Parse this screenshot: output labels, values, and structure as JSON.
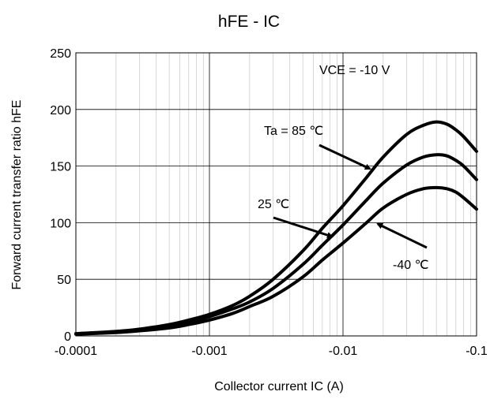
{
  "chart_data": {
    "type": "line",
    "title": "hFE - IC",
    "xlabel": "Collector current IC (A)",
    "ylabel": "Forward current transfer ratio hFE",
    "x_scale": "log",
    "xlim": [
      -0.0001,
      -0.1
    ],
    "ylim": [
      0,
      250
    ],
    "grid": true,
    "x_ticks": [
      "-0.0001",
      "-0.001",
      "-0.01",
      "-0.1"
    ],
    "y_ticks": [
      "0",
      "50",
      "100",
      "150",
      "200",
      "250"
    ],
    "condition_label": "VCE = -10 V",
    "series": [
      {
        "name": "Ta = 85 ℃",
        "color": "#000000",
        "x": [
          -0.0001,
          -0.0002,
          -0.0003,
          -0.0005,
          -0.0007,
          -0.001,
          -0.0015,
          -0.002,
          -0.003,
          -0.005,
          -0.007,
          -0.01,
          -0.015,
          -0.02,
          -0.03,
          -0.04,
          -0.05,
          -0.06,
          -0.07,
          -0.08,
          -0.1
        ],
        "y": [
          2,
          4,
          6,
          10,
          14,
          19,
          27,
          35,
          50,
          75,
          95,
          115,
          140,
          158,
          178,
          186,
          189,
          187,
          182,
          176,
          163
        ]
      },
      {
        "name": "25 ℃",
        "color": "#000000",
        "x": [
          -0.0001,
          -0.0002,
          -0.0003,
          -0.0005,
          -0.0007,
          -0.001,
          -0.0015,
          -0.002,
          -0.003,
          -0.005,
          -0.007,
          -0.01,
          -0.015,
          -0.02,
          -0.03,
          -0.04,
          -0.05,
          -0.06,
          -0.07,
          -0.08,
          -0.1
        ],
        "y": [
          2,
          3.5,
          5,
          9,
          12,
          17,
          24,
          30,
          42,
          63,
          80,
          98,
          120,
          135,
          151,
          158,
          160,
          159,
          155,
          150,
          138
        ]
      },
      {
        "name": "-40 ℃",
        "color": "#000000",
        "x": [
          -0.0001,
          -0.0002,
          -0.0003,
          -0.0005,
          -0.0007,
          -0.001,
          -0.0015,
          -0.002,
          -0.003,
          -0.005,
          -0.007,
          -0.01,
          -0.015,
          -0.02,
          -0.03,
          -0.04,
          -0.05,
          -0.06,
          -0.07,
          -0.08,
          -0.1
        ],
        "y": [
          1.5,
          3,
          4.5,
          7,
          10,
          14,
          20,
          26,
          35,
          52,
          67,
          82,
          100,
          113,
          125,
          130,
          131,
          130,
          127,
          122,
          112
        ]
      }
    ],
    "annotations": [
      {
        "text": "Ta = 85 ℃",
        "points_to_series": "Ta = 85 ℃"
      },
      {
        "text": "25 ℃",
        "points_to_series": "25 ℃"
      },
      {
        "text": "-40 ℃",
        "points_to_series": "-40 ℃"
      }
    ]
  }
}
